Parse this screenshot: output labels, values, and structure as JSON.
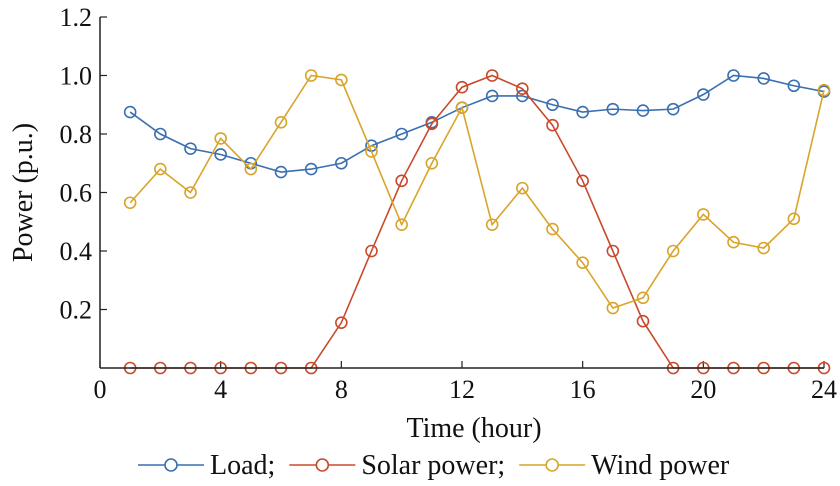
{
  "chart_data": {
    "type": "line",
    "xlabel": "Time (hour)",
    "ylabel": "Power (p.u.)",
    "xlim": [
      0,
      24
    ],
    "ylim": [
      0,
      1.2
    ],
    "xticks": [
      0,
      4,
      8,
      12,
      16,
      20,
      24
    ],
    "xtick_labels": [
      "0",
      "4",
      "8",
      "12",
      "16",
      "20",
      "24"
    ],
    "yticks": [
      0.2,
      0.4,
      0.6,
      0.8,
      1.0,
      1.2
    ],
    "ytick_labels": [
      "0.2",
      "0.4",
      "0.6",
      "0.8",
      "1.0",
      "1.2"
    ],
    "grid": false,
    "legend_position": "bottom",
    "marker": "open-circle",
    "x": [
      1,
      2,
      3,
      4,
      5,
      6,
      7,
      8,
      9,
      10,
      11,
      12,
      13,
      14,
      15,
      16,
      17,
      18,
      19,
      20,
      21,
      22,
      23,
      24
    ],
    "series": [
      {
        "name": "Load;",
        "color": "#3a6fb0",
        "values": [
          0.875,
          0.8,
          0.75,
          0.73,
          0.7,
          0.67,
          0.68,
          0.7,
          0.76,
          0.8,
          0.84,
          0.89,
          0.93,
          0.93,
          0.9,
          0.875,
          0.885,
          0.88,
          0.885,
          0.935,
          1.0,
          0.99,
          0.965,
          0.945
        ]
      },
      {
        "name": "Solar power;",
        "color": "#c84a2b",
        "values": [
          0,
          0,
          0,
          0,
          0,
          0,
          0,
          0.155,
          0.4,
          0.64,
          0.835,
          0.96,
          1.0,
          0.955,
          0.83,
          0.64,
          0.4,
          0.16,
          0,
          0,
          0,
          0,
          0,
          0
        ]
      },
      {
        "name": "Wind power",
        "color": "#d9a42a",
        "values": [
          0.565,
          0.68,
          0.6,
          0.785,
          0.68,
          0.84,
          1.0,
          0.985,
          0.74,
          0.49,
          0.7,
          0.89,
          0.49,
          0.615,
          0.475,
          0.36,
          0.205,
          0.24,
          0.4,
          0.525,
          0.43,
          0.41,
          0.51,
          0.95
        ]
      }
    ]
  }
}
